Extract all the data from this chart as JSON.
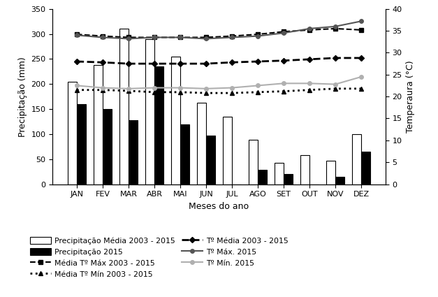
{
  "months": [
    "JAN",
    "FEV",
    "MAR",
    "ABR",
    "MAI",
    "JUN",
    "JUL",
    "AGO",
    "SET",
    "OUT",
    "NOV",
    "DEZ"
  ],
  "precip_media": [
    205,
    238,
    310,
    290,
    255,
    163,
    135,
    88,
    43,
    58,
    47,
    100
  ],
  "precip_2015": [
    160,
    150,
    128,
    235,
    120,
    97,
    0,
    28,
    20,
    0,
    15,
    65
  ],
  "tmax_media": [
    34.2,
    33.8,
    33.5,
    33.5,
    33.5,
    33.5,
    33.8,
    34.2,
    34.8,
    35.2,
    35.5,
    35.2
  ],
  "tmin_media": [
    21.5,
    21.5,
    21.3,
    21.0,
    21.0,
    20.8,
    20.8,
    21.0,
    21.2,
    21.5,
    21.8,
    21.8
  ],
  "tmedia_media": [
    28.0,
    27.8,
    27.5,
    27.5,
    27.5,
    27.5,
    27.8,
    28.0,
    28.2,
    28.5,
    28.8,
    28.8
  ],
  "tmax_2015": [
    34.0,
    33.5,
    33.2,
    33.5,
    33.5,
    33.2,
    33.5,
    33.8,
    34.5,
    35.5,
    36.0,
    37.2
  ],
  "tmin_2015": [
    22.5,
    22.0,
    21.8,
    22.0,
    22.0,
    21.8,
    22.0,
    22.5,
    23.0,
    23.0,
    22.8,
    24.5
  ],
  "ylabel_left": "Precipitação (mm)",
  "ylabel_right": "Temperaura (°C)",
  "xlabel": "Meses do ano",
  "ylim_left": [
    0,
    350
  ],
  "ylim_right": [
    0,
    40
  ],
  "yticks_left": [
    0,
    50,
    100,
    150,
    200,
    250,
    300,
    350
  ],
  "yticks_right": [
    0,
    5,
    10,
    15,
    20,
    25,
    30,
    35,
    40
  ]
}
